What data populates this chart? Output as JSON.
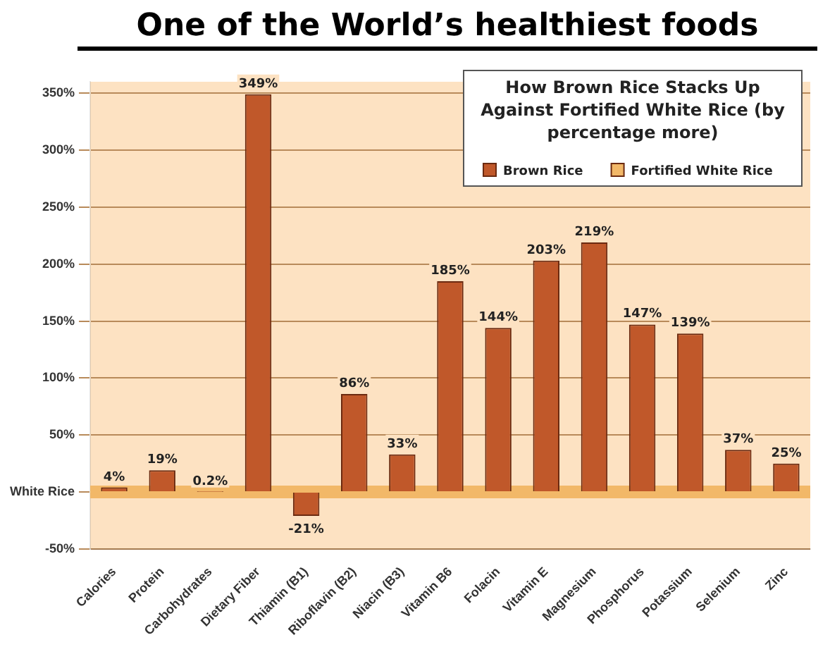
{
  "chart_data": {
    "type": "bar",
    "title": "One of the World’s healthiest foods",
    "legend_title": "How Brown Rice Stacks Up Against Fortified White Rice (by percentage more)",
    "categories": [
      "Calories",
      "Protein",
      "Carbohydrates",
      "Dietary Fiber",
      "Thiamin (B1)",
      "Riboflavin (B2)",
      "Niacin (B3)",
      "Vitamin B6",
      "Folacin",
      "Vitamin E",
      "Magnesium",
      "Phosphorus",
      "Potassium",
      "Selenium",
      "Zinc"
    ],
    "series": [
      {
        "name": "Brown Rice",
        "color": "#c0582a",
        "values": [
          4,
          19,
          0.2,
          349,
          -21,
          86,
          33,
          185,
          144,
          203,
          219,
          147,
          139,
          37,
          25
        ],
        "value_labels": [
          "4%",
          "19%",
          "0.2%",
          "349%",
          "-21%",
          "86%",
          "33%",
          "185%",
          "144%",
          "203%",
          "219%",
          "147%",
          "139%",
          "37%",
          "25%"
        ]
      }
    ],
    "ref_lines": [
      {
        "axis": "y",
        "value": 0,
        "label": "Fortified White Rice",
        "color": "#f2b868"
      }
    ],
    "ylim": [
      -50,
      360
    ],
    "yticks": [
      {
        "value": -50,
        "label": "-50%"
      },
      {
        "value": 0,
        "label": "White Rice"
      },
      {
        "value": 50,
        "label": "50%"
      },
      {
        "value": 100,
        "label": "100%"
      },
      {
        "value": 150,
        "label": "150%"
      },
      {
        "value": 200,
        "label": "200%"
      },
      {
        "value": 250,
        "label": "250%"
      },
      {
        "value": 300,
        "label": "300%"
      },
      {
        "value": 350,
        "label": "350%"
      }
    ],
    "grid": "y",
    "legend": "top right"
  }
}
